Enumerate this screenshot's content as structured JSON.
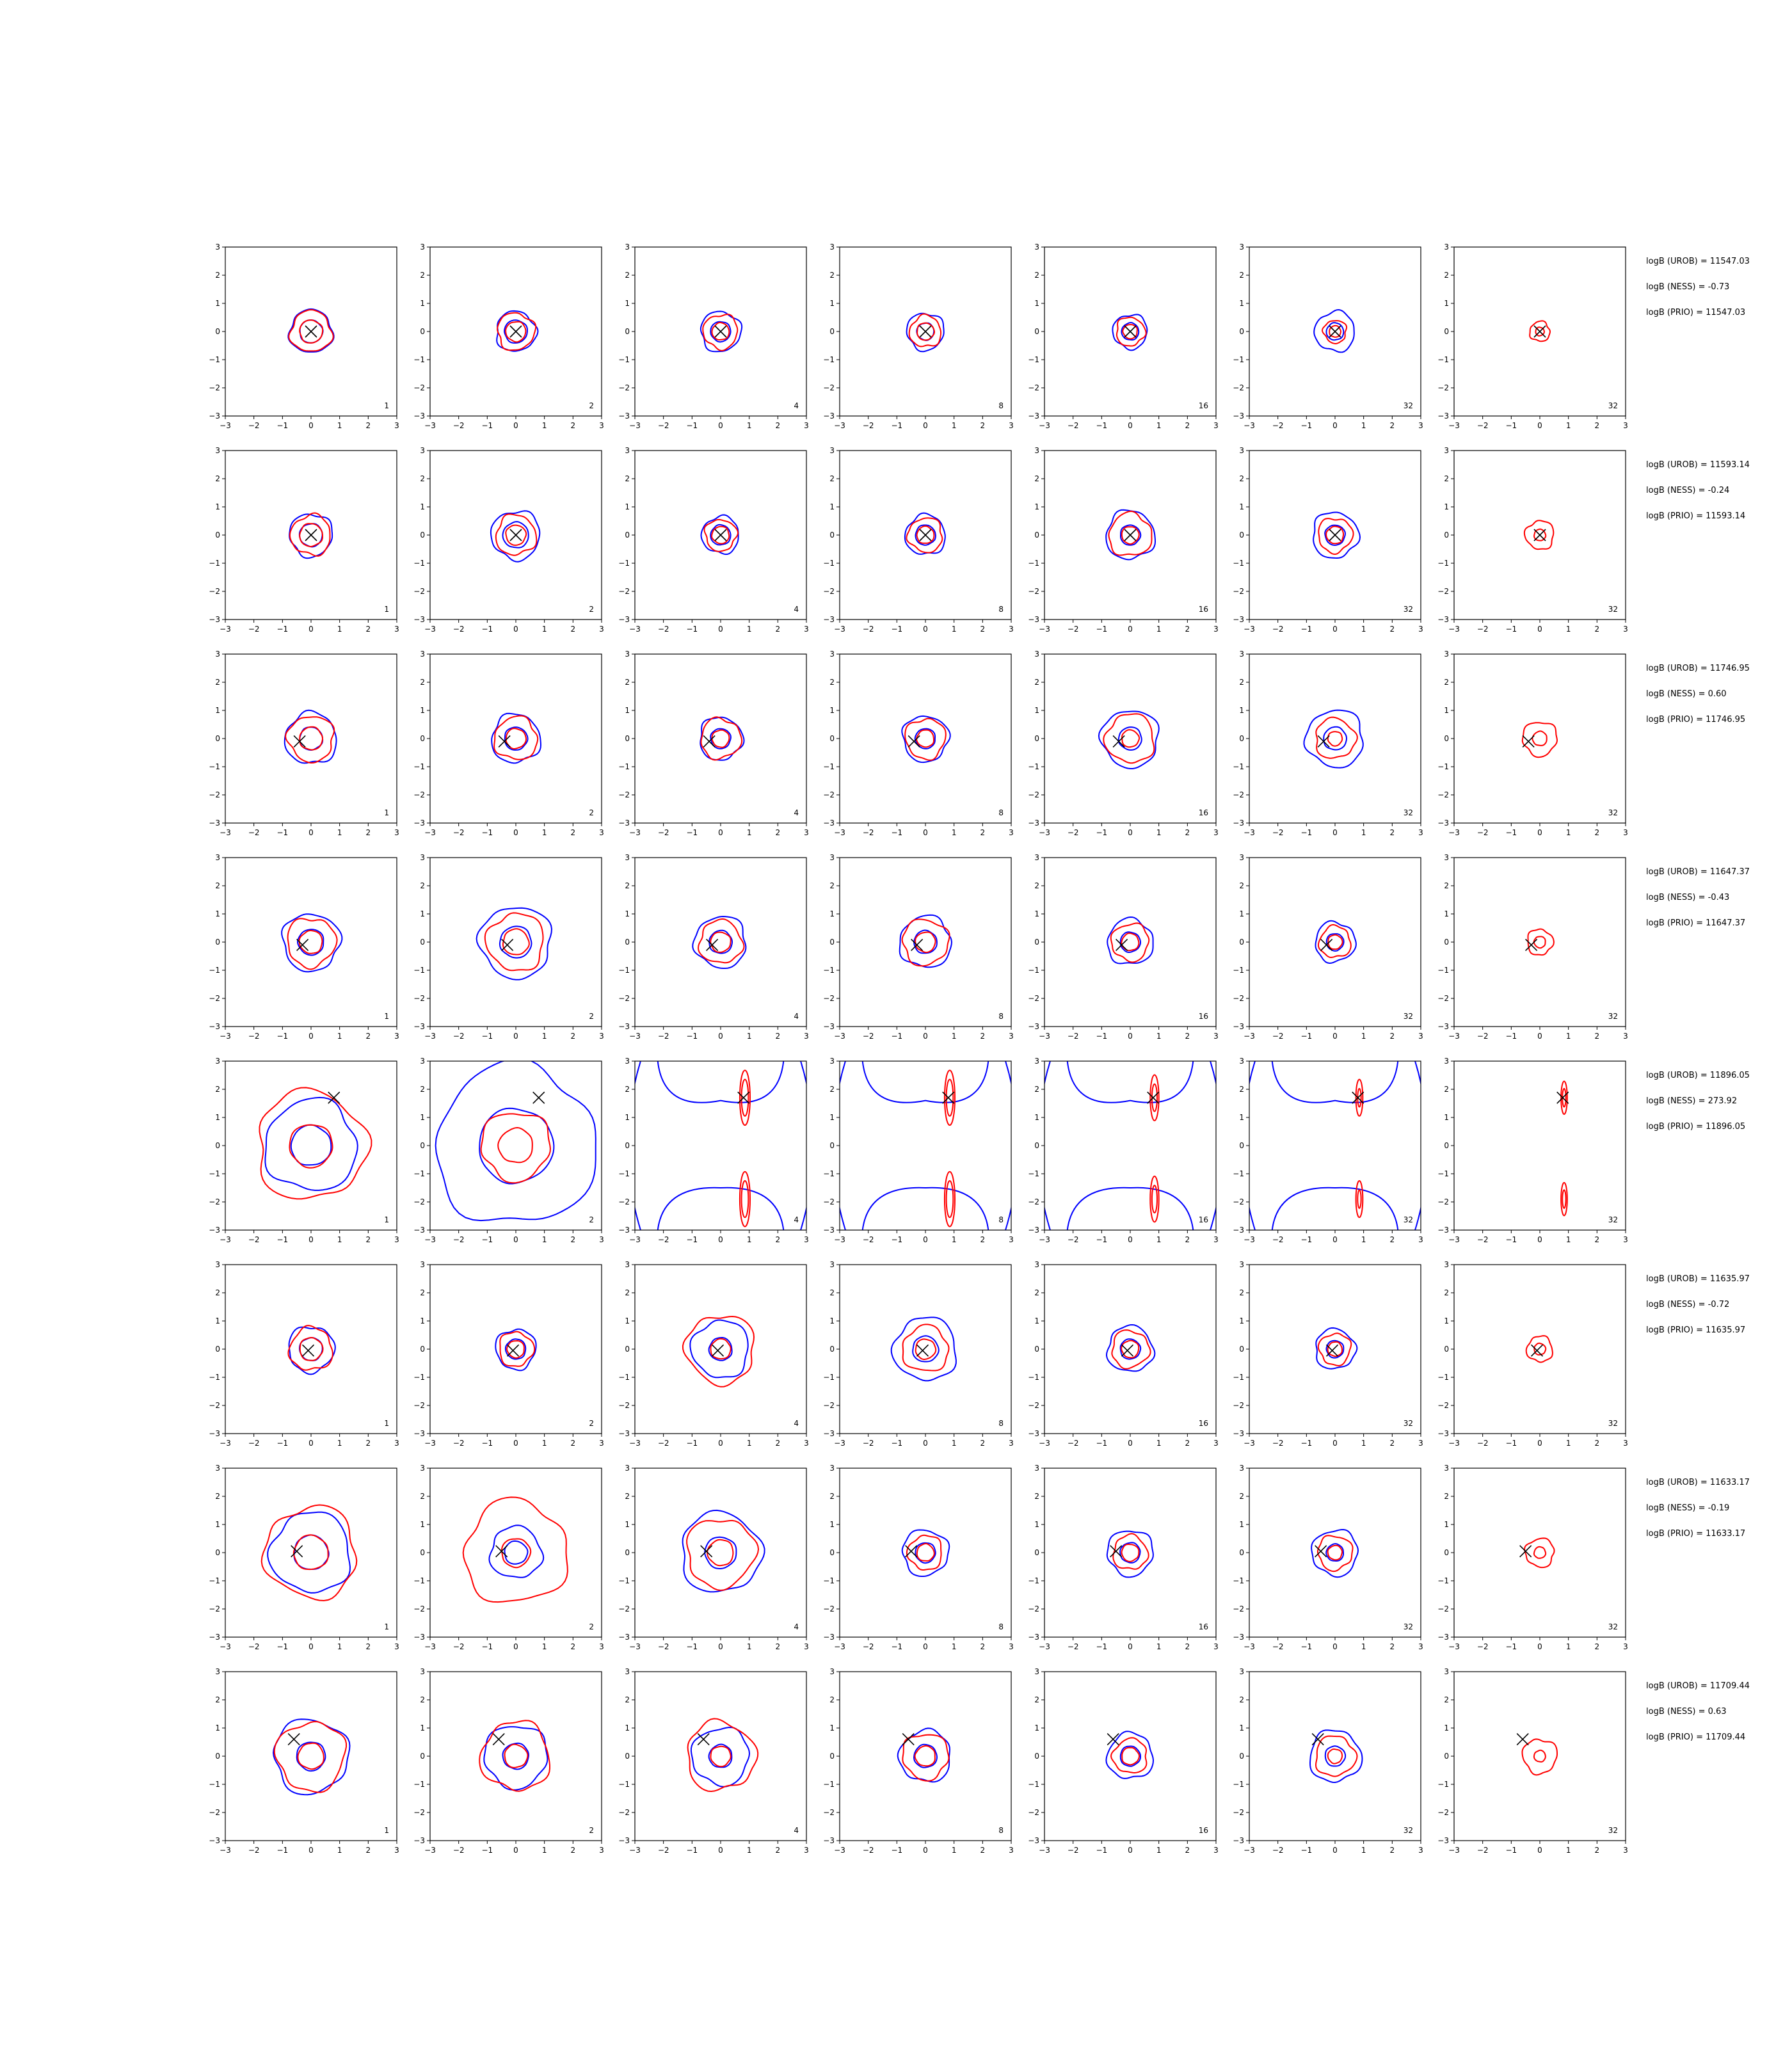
{
  "chart_data": {
    "type": "contour-grid",
    "title": "",
    "xlim": [
      -3,
      3
    ],
    "ylim": [
      -3,
      3
    ],
    "xticks": [
      -3,
      -2,
      -1,
      0,
      1,
      2,
      3
    ],
    "yticks": [
      -3,
      -2,
      -1,
      0,
      1,
      2,
      3
    ],
    "grid": false,
    "colors": {
      "series_a": "#0000ff",
      "series_b": "#ff0000",
      "marker": "#000000"
    },
    "column_tags": [
      "1",
      "2",
      "4",
      "8",
      "16",
      "32",
      "32"
    ],
    "rows": [
      {
        "marker": [
          0.0,
          0.0
        ],
        "stats": [
          "logB (UROB) = 11547.03",
          "logB (NESS) = -0.73",
          "logB (PRIO) = 11547.03"
        ],
        "panels": [
          {
            "blue": [
              0.75,
              0.4
            ],
            "red": [
              0.72,
              0.4
            ]
          },
          {
            "blue": [
              0.7,
              0.4
            ],
            "red": [
              0.65,
              0.35
            ]
          },
          {
            "blue": [
              0.7,
              0.35
            ],
            "red": [
              0.6,
              0.3
            ]
          },
          {
            "blue": [
              0.65,
              0.3
            ],
            "red": [
              0.55,
              0.3
            ]
          },
          {
            "blue": [
              0.6,
              0.3
            ],
            "red": [
              0.5,
              0.25
            ]
          },
          {
            "blue": [
              0.7,
              0.3
            ],
            "red": [
              0.4,
              0.2
            ]
          },
          {
            "blue": [],
            "red": [
              0.35,
              0.15
            ]
          }
        ]
      },
      {
        "marker": [
          0.0,
          0.0
        ],
        "stats": [
          "logB (UROB) = 11593.14",
          "logB (NESS) = -0.24",
          "logB (PRIO) = 11593.14"
        ],
        "panels": [
          {
            "blue": [
              0.75,
              0.4
            ],
            "red": [
              0.7,
              0.4
            ]
          },
          {
            "blue": [
              0.85,
              0.45
            ],
            "red": [
              0.7,
              0.35
            ]
          },
          {
            "blue": [
              0.65,
              0.35
            ],
            "red": [
              0.55,
              0.3
            ]
          },
          {
            "blue": [
              0.7,
              0.35
            ],
            "red": [
              0.6,
              0.3
            ]
          },
          {
            "blue": [
              0.85,
              0.35
            ],
            "red": [
              0.75,
              0.3
            ]
          },
          {
            "blue": [
              0.8,
              0.35
            ],
            "red": [
              0.6,
              0.3
            ]
          },
          {
            "blue": [],
            "red": [
              0.5,
              0.2
            ]
          }
        ]
      },
      {
        "marker": [
          -0.4,
          -0.1
        ],
        "stats": [
          "logB (UROB) = 11746.95",
          "logB (NESS) = 0.60",
          "logB (PRIO) = 11746.95"
        ],
        "panels": [
          {
            "blue": [
              0.9,
              0.4
            ],
            "red": [
              0.8,
              0.4
            ]
          },
          {
            "blue": [
              0.85,
              0.4
            ],
            "red": [
              0.75,
              0.35
            ]
          },
          {
            "blue": [
              0.75,
              0.35
            ],
            "red": [
              0.7,
              0.3
            ]
          },
          {
            "blue": [
              0.8,
              0.35
            ],
            "red": [
              0.7,
              0.3
            ]
          },
          {
            "blue": [
              1.0,
              0.4
            ],
            "red": [
              0.85,
              0.3
            ]
          },
          {
            "blue": [
              1.0,
              0.4
            ],
            "red": [
              0.7,
              0.25
            ]
          },
          {
            "blue": [],
            "red": [
              0.6,
              0.25
            ]
          }
        ]
      },
      {
        "marker": [
          -0.3,
          -0.1
        ],
        "stats": [
          "logB (UROB) = 11647.37",
          "logB (NESS) = -0.43",
          "logB (PRIO) = 11647.37"
        ],
        "panels": [
          {
            "blue": [
              1.0,
              0.45
            ],
            "red": [
              0.85,
              0.4
            ]
          },
          {
            "blue": [
              1.25,
              0.55
            ],
            "red": [
              1.0,
              0.45
            ]
          },
          {
            "blue": [
              0.9,
              0.4
            ],
            "red": [
              0.75,
              0.35
            ]
          },
          {
            "blue": [
              0.9,
              0.4
            ],
            "red": [
              0.8,
              0.35
            ]
          },
          {
            "blue": [
              0.8,
              0.35
            ],
            "red": [
              0.65,
              0.3
            ]
          },
          {
            "blue": [
              0.7,
              0.3
            ],
            "red": [
              0.55,
              0.25
            ]
          },
          {
            "blue": [],
            "red": [
              0.45,
              0.2
            ]
          }
        ]
      },
      {
        "marker": [
          0.8,
          1.7
        ],
        "stats": [
          "logB (UROB) = 11896.05",
          "logB (NESS) = 273.92",
          "logB (PRIO) = 11896.05"
        ],
        "panels": [
          {
            "blue": [
              1.6,
              0.7
            ],
            "red": [
              1.9,
              0.75
            ]
          },
          {
            "blue": [
              2.8,
              1.3
            ],
            "red": [
              1.2,
              0.6
            ]
          },
          {
            "blue": [
              3.0,
              2.0
            ],
            "red": [
              0.3,
              0.2
            ]
          },
          {
            "blue": [
              3.0,
              2.0
            ],
            "red": [
              0.3,
              0.2
            ]
          },
          {
            "blue": [
              3.0,
              2.0
            ],
            "red": [
              0.25,
              0.15
            ]
          },
          {
            "blue": [
              3.0,
              2.0
            ],
            "red": [
              0.2,
              0.1
            ]
          },
          {
            "blue": [],
            "red": [
              0.18,
              0.1
            ]
          }
        ]
      },
      {
        "marker": [
          -0.1,
          -0.05
        ],
        "stats": [
          "logB (UROB) = 11635.97",
          "logB (NESS) = -0.72",
          "logB (PRIO) = 11635.97"
        ],
        "panels": [
          {
            "blue": [
              0.8,
              0.4
            ],
            "red": [
              0.75,
              0.4
            ]
          },
          {
            "blue": [
              0.7,
              0.35
            ],
            "red": [
              0.6,
              0.3
            ]
          },
          {
            "blue": [
              1.0,
              0.4
            ],
            "red": [
              1.2,
              0.35
            ]
          },
          {
            "blue": [
              1.1,
              0.45
            ],
            "red": [
              0.8,
              0.35
            ]
          },
          {
            "blue": [
              0.8,
              0.35
            ],
            "red": [
              0.65,
              0.3
            ]
          },
          {
            "blue": [
              0.7,
              0.3
            ],
            "red": [
              0.55,
              0.25
            ]
          },
          {
            "blue": [],
            "red": [
              0.45,
              0.2
            ]
          }
        ]
      },
      {
        "marker": [
          -0.5,
          0.05
        ],
        "stats": [
          "logB (UROB) = 11633.17",
          "logB (NESS) = -0.19",
          "logB (PRIO) = 11633.17"
        ],
        "panels": [
          {
            "blue": [
              1.4,
              0.6
            ],
            "red": [
              1.6,
              0.6
            ]
          },
          {
            "blue": [
              0.9,
              0.4
            ],
            "red": [
              1.8,
              0.5
            ]
          },
          {
            "blue": [
              1.4,
              0.55
            ],
            "red": [
              1.2,
              0.45
            ]
          },
          {
            "blue": [
              0.8,
              0.35
            ],
            "red": [
              0.6,
              0.3
            ]
          },
          {
            "blue": [
              0.8,
              0.35
            ],
            "red": [
              0.6,
              0.3
            ]
          },
          {
            "blue": [
              0.8,
              0.3
            ],
            "red": [
              0.6,
              0.25
            ]
          },
          {
            "blue": [],
            "red": [
              0.5,
              0.2
            ]
          }
        ]
      },
      {
        "marker": [
          -0.6,
          0.6
        ],
        "stats": [
          "logB (UROB) = 11709.44",
          "logB (NESS) = 0.63",
          "logB (PRIO) = 11709.44"
        ],
        "panels": [
          {
            "blue": [
              1.3,
              0.5
            ],
            "red": [
              1.2,
              0.45
            ]
          },
          {
            "blue": [
              1.1,
              0.45
            ],
            "red": [
              1.2,
              0.4
            ]
          },
          {
            "blue": [
              1.0,
              0.4
            ],
            "red": [
              1.2,
              0.35
            ]
          },
          {
            "blue": [
              0.9,
              0.4
            ],
            "red": [
              0.8,
              0.35
            ]
          },
          {
            "blue": [
              0.8,
              0.35
            ],
            "red": [
              0.6,
              0.3
            ]
          },
          {
            "blue": [
              0.9,
              0.35
            ],
            "red": [
              0.7,
              0.25
            ]
          },
          {
            "blue": [],
            "red": [
              0.6,
              0.2
            ]
          }
        ]
      }
    ]
  }
}
